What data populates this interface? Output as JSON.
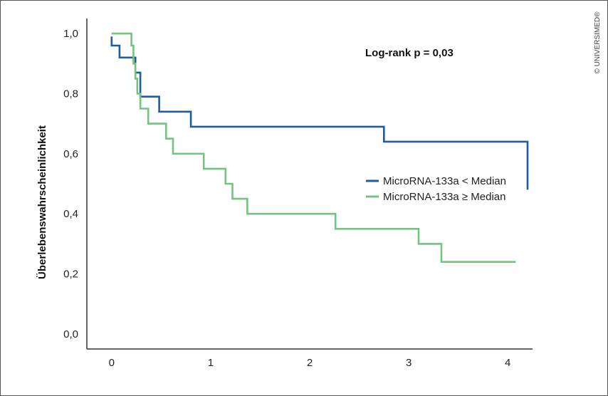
{
  "chart_data": {
    "type": "line",
    "step": true,
    "ylabel": "Überlebenswahrscheinlichkeit",
    "xlabel": "",
    "xlim": [
      -0.25,
      4.25
    ],
    "ylim": [
      -0.05,
      1.05
    ],
    "x_ticks": [
      0,
      1,
      2,
      3,
      4
    ],
    "x_tick_labels": [
      "0",
      "1",
      "2",
      "3",
      "4"
    ],
    "y_ticks": [
      0.0,
      0.2,
      0.4,
      0.6,
      0.8,
      1.0
    ],
    "y_tick_labels": [
      "0,0",
      "0,2",
      "0,4",
      "0,6",
      "0,8",
      "1,0"
    ],
    "grid": false,
    "legend_position": "right",
    "annotation": "Log-rank p = 0,03",
    "series": [
      {
        "name": "MicroRNA-133a < Median",
        "color": "#1f5c99",
        "x": [
          0,
          0,
          0.08,
          0.08,
          0.24,
          0.24,
          0.29,
          0.29,
          0.48,
          0.48,
          0.8,
          0.8,
          2.75,
          2.75,
          4.2,
          4.2
        ],
        "y": [
          0.99,
          0.96,
          0.96,
          0.92,
          0.92,
          0.87,
          0.87,
          0.79,
          0.79,
          0.74,
          0.74,
          0.69,
          0.69,
          0.64,
          0.64,
          0.48
        ]
      },
      {
        "name": "MicroRNA-133a ≥ Median",
        "color": "#74c47e",
        "x": [
          0,
          0.2,
          0.2,
          0.22,
          0.22,
          0.24,
          0.24,
          0.26,
          0.26,
          0.29,
          0.29,
          0.37,
          0.37,
          0.55,
          0.55,
          0.62,
          0.62,
          0.93,
          0.93,
          1.15,
          1.15,
          1.22,
          1.22,
          1.37,
          1.37,
          2.26,
          2.26,
          3.1,
          3.1,
          3.33,
          3.33,
          4.08
        ],
        "y": [
          1.0,
          1.0,
          0.96,
          0.96,
          0.9,
          0.9,
          0.85,
          0.85,
          0.8,
          0.8,
          0.75,
          0.75,
          0.7,
          0.7,
          0.65,
          0.65,
          0.6,
          0.6,
          0.55,
          0.55,
          0.5,
          0.5,
          0.45,
          0.45,
          0.4,
          0.4,
          0.35,
          0.35,
          0.3,
          0.3,
          0.24,
          0.24
        ]
      }
    ]
  },
  "copyright": "© UNIVERSIMED®"
}
